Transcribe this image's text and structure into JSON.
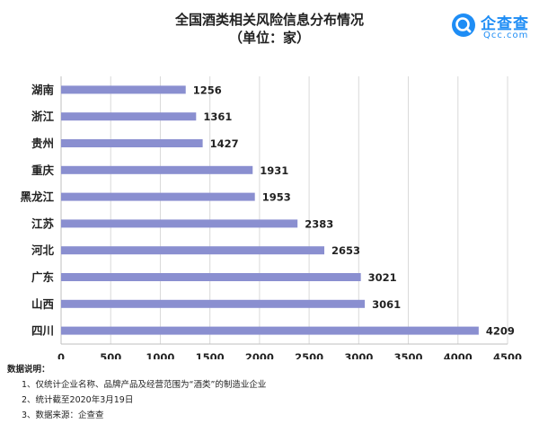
{
  "title": "全国酒类相关风险信息分布情况",
  "subtitle": "（单位：家）",
  "logo": {
    "name": "企查查",
    "sub": "Qcc.com",
    "color": "#1e8df5",
    "icon": "qcc-logo-icon"
  },
  "chart_data": {
    "type": "bar",
    "orientation": "horizontal",
    "categories": [
      "湖南",
      "浙江",
      "贵州",
      "重庆",
      "黑龙江",
      "江苏",
      "河北",
      "广东",
      "山西",
      "四川"
    ],
    "values": [
      1256,
      1361,
      1427,
      1931,
      1953,
      2383,
      2653,
      3021,
      3061,
      4209
    ],
    "xlim": [
      0,
      4500
    ],
    "xticks": [
      0,
      500,
      1000,
      1500,
      2000,
      2500,
      3000,
      3500,
      4000,
      4500
    ],
    "grid": "vertical",
    "bar_color": "#8a8fd0",
    "data_labels": true
  },
  "notes": {
    "heading": "数据说明：",
    "items": [
      "1、仅统计企业名称、品牌产品及经营范围为“酒类”的制造业企业",
      "2、统计截至2020年3月19日",
      "3、数据来源：企查查"
    ]
  }
}
